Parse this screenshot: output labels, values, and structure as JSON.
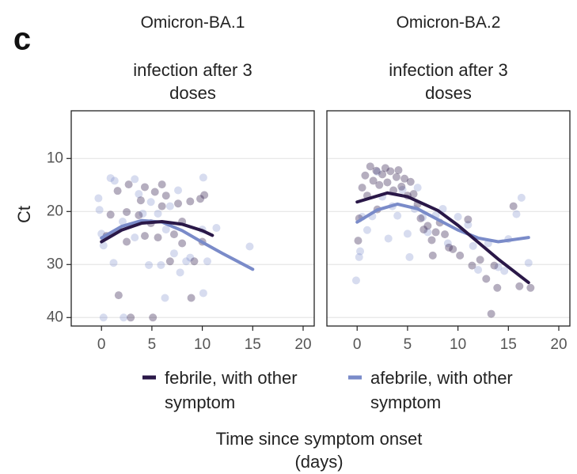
{
  "chart_data": {
    "type": "scatter",
    "panel_label": "c",
    "ylabel": "Ct",
    "xlabel": "Time since symptom onset (days)",
    "xlim": [
      -3,
      21.1
    ],
    "xticks": [
      0,
      5,
      10,
      15,
      20
    ],
    "ylim": [
      41.6,
      1
    ],
    "yticks": [
      10,
      20,
      30,
      40
    ],
    "grid": true,
    "legend": "bottom",
    "series": [
      {
        "name": "febrile, with other symptom",
        "color": "#2a1848"
      },
      {
        "name": "afebrile, with other symptom",
        "color": "#7a8bc9"
      }
    ],
    "facets": [
      {
        "title": "Omicron-BA.1",
        "subtitle": "infection after 3 doses",
        "series": [
          {
            "x": [
              1.6,
              2.7,
              3.9,
              4.3,
              5.3,
              6,
              6.4,
              7.6,
              8.8,
              9.8,
              10.2,
              0.9,
              2.5,
              4.9,
              7.2,
              5.6,
              4.3,
              8,
              6.8,
              9.2,
              8,
              1.7,
              8.9,
              2.9,
              5.1,
              0.5,
              3.7,
              6,
              10,
              2.5
            ],
            "y": [
              16.1,
              14.9,
              17.9,
              15.4,
              16.3,
              14.9,
              17,
              18.5,
              18.1,
              17.6,
              16.9,
              20.6,
              20.1,
              22.2,
              24.3,
              24.9,
              24.6,
              26,
              29.4,
              29.4,
              21.9,
              35.8,
              36.3,
              40,
              40,
              24.6,
              20.7,
              19,
              25.7,
              25.7
            ],
            "smooth_x": [
              0,
              2,
              4,
              6,
              8,
              10,
              11
            ],
            "smooth_y": [
              25.7,
              23.5,
              22.2,
              21.9,
              22.4,
              23.6,
              24.5
            ]
          },
          {
            "x": [
              -0.3,
              -0.2,
              0,
              0.2,
              0.9,
              1.3,
              1.2,
              2.1,
              3.3,
              3.3,
              4.1,
              4.9,
              5.6,
              6.4,
              6.8,
              7.2,
              8.4,
              8.8,
              10.1,
              10.1,
              6.3,
              10,
              11.4,
              14.7,
              0.2,
              2.2,
              4.7,
              5.9,
              7.8,
              10.5,
              3.7,
              7.6
            ],
            "y": [
              17.5,
              19.7,
              24.2,
              26.4,
              13.7,
              14.2,
              29.7,
              21.9,
              13.9,
              24.9,
              20.4,
              18.2,
              20.4,
              23.4,
              19,
              27.9,
              29.4,
              28.7,
              13.6,
              35.4,
              36.3,
              23.4,
              23.1,
              26.6,
              40,
              40,
              30.1,
              30.1,
              31.5,
              29.4,
              16.7,
              16
            ],
            "smooth_x": [
              0,
              2,
              4,
              6,
              8,
              10,
              12,
              15
            ],
            "smooth_y": [
              25,
              22.8,
              21.7,
              22,
              23.6,
              25.8,
              27.9,
              30.9
            ]
          }
        ]
      },
      {
        "title": "Omicron-BA.2",
        "subtitle": "infection after 3 doses",
        "series": [
          {
            "x": [
              0.2,
              0.5,
              0.8,
              1,
              1.3,
              1.6,
              1.9,
              2.2,
              2.5,
              2.8,
              3,
              3.3,
              3.6,
              3.9,
              4.1,
              4.4,
              4.7,
              5,
              5.3,
              5.6,
              6,
              6.3,
              6.6,
              7,
              7.4,
              7.8,
              8.2,
              8.7,
              9.1,
              9.5,
              10.2,
              11,
              11.4,
              12.2,
              12.8,
              13.3,
              13.9,
              15.5,
              16.1,
              17.2,
              0.1,
              2,
              7.5,
              13.6
            ],
            "y": [
              21.3,
              15.5,
              13.2,
              17,
              11.5,
              14.2,
              12.3,
              15,
              13,
              11.8,
              14.5,
              12.4,
              16,
              13.5,
              12.2,
              15.3,
              13.8,
              17,
              14.4,
              16.7,
              18.6,
              21.3,
              23.4,
              22.7,
              25.4,
              23.9,
              22.1,
              24.3,
              26.8,
              27.1,
              28.3,
              21.5,
              30.2,
              29.1,
              32.7,
              39.3,
              34.4,
              19,
              34.1,
              34.4,
              25.5,
              19.6,
              28.3,
              30.2
            ],
            "smooth_x": [
              0,
              3,
              5,
              8,
              10,
              12,
              14,
              17
            ],
            "smooth_y": [
              18.2,
              16.5,
              17.2,
              19.8,
              22.6,
              25.8,
              29,
              33.4
            ]
          },
          {
            "x": [
              -0.1,
              0.2,
              0.3,
              0.5,
              1,
              1.5,
              2,
              2.5,
              3.1,
              3.5,
              4,
              4.5,
              5,
              5.2,
              5.7,
              6,
              6.5,
              7,
              7.8,
              8.5,
              9,
              10,
              11,
              12,
              13,
              14,
              15,
              15.8,
              16.3,
              17,
              11.5,
              14.6
            ],
            "y": [
              33,
              28.6,
              27.5,
              21,
              23.5,
              20.9,
              12.5,
              17.2,
              25.1,
              19,
              20.8,
              15.9,
              24.2,
              28.6,
              19.5,
              15.5,
              21.1,
              23.9,
              20.7,
              19.5,
              26,
              21,
              22.5,
              31,
              26,
              30.5,
              25.2,
              20.5,
              17.4,
              29.7,
              26.5,
              31.2
            ],
            "smooth_x": [
              0,
              2,
              4,
              6,
              8,
              10,
              12,
              14,
              17
            ],
            "smooth_y": [
              22,
              19.7,
              18.6,
              19.5,
              21.5,
              23.5,
              25,
              25.7,
              24.9
            ]
          }
        ]
      }
    ]
  }
}
